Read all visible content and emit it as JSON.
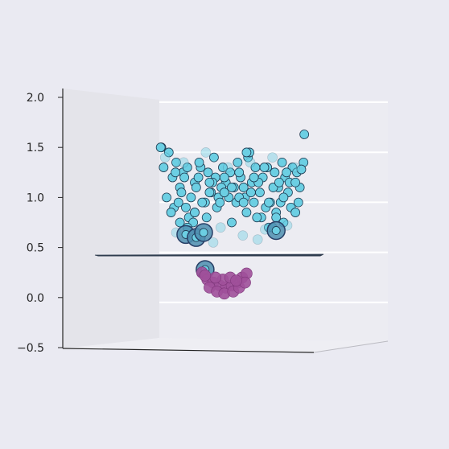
{
  "chart_data": {
    "type": "scatter",
    "projection": "3d",
    "title": "",
    "xlabel": "",
    "ylabel": "",
    "zlabel": "",
    "zlim": [
      -0.5,
      2.0
    ],
    "z_ticks": [
      "2.0",
      "1.5",
      "1.0",
      "0.5",
      "0.0",
      "−0.5"
    ],
    "grid": true,
    "legend": "none",
    "colors": {
      "background": "#eaeaf2",
      "left_pane": "#e4e4ea",
      "back_pane": "#ececf2",
      "grid": "#ffffff",
      "axis_line": "#262626",
      "upper_points": "#6ccfe3",
      "upper_edge": "#1d3b52",
      "large_markers": "#4e8fb0",
      "large_markers_edge": "#273f66",
      "lower_points": "#a0509a",
      "lower_edge": "#7d3579",
      "plane": "#2f3d4f"
    },
    "series": [
      {
        "group": "upper",
        "x": [
          -0.95,
          -0.92,
          -0.85,
          -0.8,
          -0.75,
          -0.7,
          -0.66,
          -0.6,
          -0.55,
          -0.5,
          -0.45,
          -0.42,
          -0.38,
          -0.32,
          -0.28,
          -0.22,
          -0.18,
          -0.12,
          -0.08,
          -0.02,
          0.03,
          0.08,
          0.12,
          0.18,
          0.22,
          0.27,
          0.32,
          0.38,
          0.42,
          0.48,
          0.52,
          0.58,
          0.63,
          0.68,
          0.72,
          0.78,
          0.82,
          0.88,
          0.92,
          0.97,
          -0.88,
          -0.78,
          -0.68,
          -0.58,
          -0.48,
          -0.36,
          -0.26,
          -0.14,
          -0.04,
          0.06,
          0.16,
          0.26,
          0.36,
          0.46,
          0.56,
          0.66,
          0.76,
          0.86,
          -0.82,
          -0.72,
          -0.62,
          -0.52,
          -0.4,
          -0.3,
          -0.2,
          -0.1,
          0.0,
          0.1,
          0.2,
          0.3,
          0.4,
          0.5,
          0.6,
          0.7,
          0.8,
          0.9,
          -0.7,
          -0.6,
          -0.5,
          -0.34,
          -0.16,
          0.0,
          0.16,
          0.34,
          0.5,
          0.6,
          0.7,
          0.86,
          -0.76,
          -0.44,
          -0.24,
          0.24,
          0.44,
          0.74,
          -0.64,
          -0.3,
          0.3,
          0.64,
          -0.1,
          0.1,
          0.94,
          -0.96,
          0.98,
          -0.5,
          0.55,
          0.2
        ],
        "y": [
          1.5,
          1.3,
          1.45,
          1.2,
          1.35,
          1.1,
          1.25,
          1.3,
          1.0,
          1.15,
          1.2,
          1.3,
          0.95,
          1.25,
          1.05,
          1.2,
          1.0,
          1.3,
          1.15,
          1.25,
          1.1,
          1.35,
          1.2,
          1.0,
          1.4,
          1.15,
          1.3,
          1.05,
          1.2,
          1.3,
          0.95,
          1.25,
          1.1,
          1.35,
          1.2,
          1.15,
          1.3,
          1.25,
          1.1,
          1.35,
          1.0,
          0.9,
          1.05,
          0.8,
          1.1,
          0.95,
          1.15,
          1.1,
          1.0,
          0.95,
          1.1,
          1.05,
          1.15,
          0.9,
          1.1,
          0.95,
          1.05,
          1.15,
          0.85,
          0.95,
          0.9,
          0.75,
          0.95,
          1.05,
          0.9,
          1.05,
          1.1,
          1.0,
          0.85,
          0.95,
          0.8,
          0.95,
          0.85,
          1.0,
          0.9,
          0.95,
          0.75,
          0.7,
          0.85,
          0.8,
          0.95,
          0.75,
          0.95,
          0.8,
          0.7,
          0.8,
          0.75,
          0.85,
          1.25,
          1.35,
          1.4,
          1.45,
          1.3,
          1.25,
          1.2,
          1.15,
          1.2,
          1.15,
          1.2,
          1.25,
          1.28,
          1.5,
          1.63,
          0.85,
          0.7,
          1.45
        ]
      },
      {
        "group": "upper-faded",
        "x": [
          -0.9,
          -0.65,
          -0.35,
          -0.05,
          0.25,
          0.55,
          0.85,
          -0.75,
          -0.15,
          0.45,
          -0.55,
          0.15,
          0.75,
          -0.25,
          0.35
        ],
        "y": [
          1.4,
          1.35,
          1.45,
          1.3,
          1.35,
          1.4,
          1.3,
          0.65,
          0.7,
          0.68,
          0.6,
          0.62,
          0.72,
          0.55,
          0.58
        ]
      },
      {
        "group": "large-markers",
        "x": [
          -0.62,
          -0.48,
          -0.38,
          0.6,
          -0.36
        ],
        "y": [
          0.63,
          0.6,
          0.65,
          0.67,
          0.28
        ]
      },
      {
        "group": "lower",
        "x": [
          -0.4,
          -0.33,
          -0.25,
          -0.16,
          -0.08,
          0.0,
          0.08,
          0.14,
          0.2,
          -0.3,
          -0.2,
          -0.1,
          0.02,
          0.1,
          0.18,
          -0.12,
          -0.02,
          0.06,
          -0.22,
          -0.36
        ],
        "y": [
          0.25,
          0.18,
          0.15,
          0.12,
          0.1,
          0.12,
          0.15,
          0.2,
          0.24,
          0.1,
          0.06,
          0.04,
          0.06,
          0.1,
          0.15,
          0.18,
          0.2,
          0.17,
          0.2,
          0.22
        ]
      }
    ],
    "plane_at": 0.4
  }
}
